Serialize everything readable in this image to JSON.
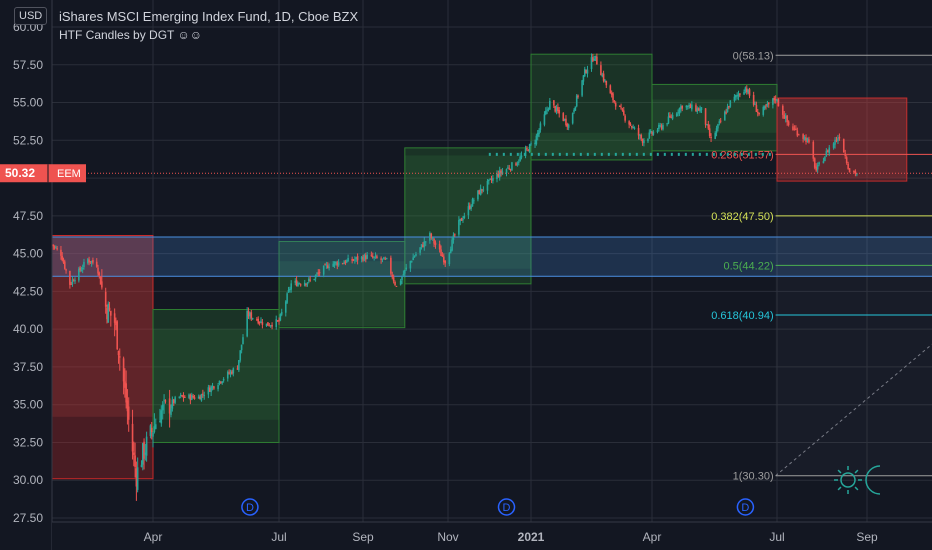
{
  "header": {
    "currency": "USD",
    "title": "iShares MSCI Emerging Index Fund, 1D, Cboe BZX",
    "indicator": "HTF Candles by DGT ☺☺"
  },
  "colors": {
    "background": "#131722",
    "grid": "#2a2e39",
    "up": "#26a69a",
    "down": "#ef5350",
    "fib_0": "#9e9e9e",
    "fib_236": "#ef5350",
    "fib_382": "#d4e157",
    "fib_5": "#4caf50",
    "fib_618": "#26c6da",
    "fib_1": "#9e9e9e",
    "zone": "#4a90e2",
    "price_label": "#ef5350",
    "dividend": "#2962ff"
  },
  "price_tag": {
    "value": "50.32",
    "symbol": "EEM"
  },
  "dividend_marker_label": "D",
  "chart_data": {
    "type": "candlestick",
    "title": "iShares MSCI Emerging Index Fund, 1D, Cboe BZX",
    "ylim": [
      27.5,
      60.0
    ],
    "y_ticks": [
      "60.00",
      "57.50",
      "55.00",
      "52.50",
      "50.00",
      "47.50",
      "45.00",
      "42.50",
      "40.00",
      "37.50",
      "35.00",
      "32.50",
      "30.00",
      "27.50"
    ],
    "y_tick_values": [
      60,
      57.5,
      55,
      52.5,
      50,
      47.5,
      45,
      42.5,
      40,
      37.5,
      35,
      32.5,
      30,
      27.5
    ],
    "x_ticks": [
      {
        "label": "Apr",
        "date": "2020-04-01"
      },
      {
        "label": "Jul",
        "date": "2020-07-01"
      },
      {
        "label": "Sep",
        "date": "2020-09-01"
      },
      {
        "label": "Nov",
        "date": "2020-11-01"
      },
      {
        "label": "2021",
        "date": "2021-01-01"
      },
      {
        "label": "Apr",
        "date": "2021-04-01"
      },
      {
        "label": "Jul",
        "date": "2021-07-01"
      },
      {
        "label": "Sep",
        "date": "2021-09-01"
      }
    ],
    "date_range": [
      "2020-01-13",
      "2021-10-20"
    ],
    "htf_candles": [
      {
        "start": "2020-01-13",
        "end": "2020-04-01",
        "open": 46.2,
        "high": 46.2,
        "low": 30.1,
        "close": 34.2,
        "direction": "down"
      },
      {
        "start": "2020-04-01",
        "end": "2020-07-01",
        "open": 34.0,
        "high": 41.3,
        "low": 32.5,
        "close": 40.0,
        "direction": "up"
      },
      {
        "start": "2020-07-01",
        "end": "2020-10-01",
        "open": 40.2,
        "high": 45.8,
        "low": 40.1,
        "close": 44.5,
        "direction": "up"
      },
      {
        "start": "2020-10-01",
        "end": "2021-01-01",
        "open": 44.0,
        "high": 52.0,
        "low": 43.0,
        "close": 51.5,
        "direction": "up"
      },
      {
        "start": "2021-01-01",
        "end": "2021-04-01",
        "open": 51.5,
        "high": 58.2,
        "low": 51.2,
        "close": 53.0,
        "direction": "up"
      },
      {
        "start": "2021-04-01",
        "end": "2021-07-01",
        "open": 53.0,
        "high": 56.2,
        "low": 51.8,
        "close": 55.2,
        "direction": "up"
      },
      {
        "start": "2021-07-01",
        "end": "2021-10-01",
        "open": 55.3,
        "high": 55.3,
        "low": 49.8,
        "close": 50.0,
        "direction": "down"
      }
    ],
    "price_path": [
      [
        "2020-01-13",
        45.6
      ],
      [
        "2020-01-20",
        45.0
      ],
      [
        "2020-01-27",
        43.0
      ],
      [
        "2020-02-03",
        43.8
      ],
      [
        "2020-02-10",
        44.6
      ],
      [
        "2020-02-17",
        44.3
      ],
      [
        "2020-02-24",
        41.5
      ],
      [
        "2020-03-02",
        40.5
      ],
      [
        "2020-03-09",
        36.5
      ],
      [
        "2020-03-16",
        32.0
      ],
      [
        "2020-03-19",
        30.3
      ],
      [
        "2020-03-23",
        31.5
      ],
      [
        "2020-03-30",
        33.0
      ],
      [
        "2020-04-06",
        34.5
      ],
      [
        "2020-04-20",
        35.5
      ],
      [
        "2020-05-04",
        35.5
      ],
      [
        "2020-05-18",
        36.5
      ],
      [
        "2020-06-01",
        37.5
      ],
      [
        "2020-06-08",
        41.0
      ],
      [
        "2020-06-22",
        40.3
      ],
      [
        "2020-07-01",
        40.5
      ],
      [
        "2020-07-10",
        43.0
      ],
      [
        "2020-07-24",
        43.2
      ],
      [
        "2020-08-07",
        44.3
      ],
      [
        "2020-08-21",
        44.5
      ],
      [
        "2020-09-04",
        44.8
      ],
      [
        "2020-09-18",
        44.5
      ],
      [
        "2020-09-25",
        42.8
      ],
      [
        "2020-10-05",
        44.5
      ],
      [
        "2020-10-19",
        46.2
      ],
      [
        "2020-10-30",
        44.5
      ],
      [
        "2020-11-09",
        47.0
      ],
      [
        "2020-11-23",
        49.0
      ],
      [
        "2020-12-07",
        50.2
      ],
      [
        "2020-12-21",
        51.0
      ],
      [
        "2021-01-04",
        52.5
      ],
      [
        "2021-01-15",
        55.0
      ],
      [
        "2021-01-29",
        53.5
      ],
      [
        "2021-02-10",
        57.0
      ],
      [
        "2021-02-17",
        58.1
      ],
      [
        "2021-03-01",
        55.5
      ],
      [
        "2021-03-12",
        54.0
      ],
      [
        "2021-03-25",
        52.5
      ],
      [
        "2021-04-09",
        53.5
      ],
      [
        "2021-04-23",
        54.8
      ],
      [
        "2021-05-07",
        54.5
      ],
      [
        "2021-05-14",
        52.5
      ],
      [
        "2021-05-28",
        55.0
      ],
      [
        "2021-06-08",
        56.0
      ],
      [
        "2021-06-18",
        54.2
      ],
      [
        "2021-06-30",
        55.3
      ],
      [
        "2021-07-09",
        53.5
      ],
      [
        "2021-07-22",
        52.5
      ],
      [
        "2021-07-28",
        50.5
      ],
      [
        "2021-08-06",
        52.0
      ],
      [
        "2021-08-13",
        52.8
      ],
      [
        "2021-08-20",
        50.5
      ],
      [
        "2021-08-25",
        50.32
      ]
    ],
    "fib_levels": [
      {
        "label": "0(58.13)",
        "value": 58.13,
        "color_key": "fib_0"
      },
      {
        "label": "0.236(51.57)",
        "value": 51.57,
        "color_key": "fib_236"
      },
      {
        "label": "0.382(47.50)",
        "value": 47.5,
        "color_key": "fib_382"
      },
      {
        "label": "0.5(44.22)",
        "value": 44.22,
        "color_key": "fib_5"
      },
      {
        "label": "0.618(40.94)",
        "value": 40.94,
        "color_key": "fib_618"
      },
      {
        "label": "1(30.30)",
        "value": 30.3,
        "color_key": "fib_1"
      }
    ],
    "zone": {
      "start": "2020-01-13",
      "end": "2021-11-25",
      "low": 43.5,
      "high": 46.1
    },
    "dividend_dates": [
      "2020-06-10",
      "2020-12-14",
      "2021-06-08"
    ],
    "last_price": 50.32
  }
}
